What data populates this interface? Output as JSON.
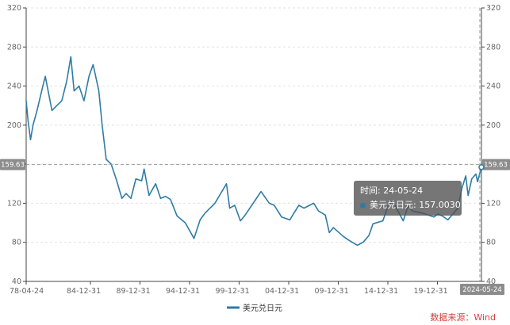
{
  "chart_data": {
    "type": "line",
    "title": "",
    "xlabel": "",
    "ylabel": "",
    "ylim": [
      40,
      320
    ],
    "yticks": [
      40,
      80,
      120,
      160,
      200,
      240,
      280,
      320
    ],
    "xticks": [
      "78-04-24",
      "84-12-31",
      "89-12-31",
      "94-12-31",
      "99-12-31",
      "04-12-31",
      "09-12-31",
      "14-12-31",
      "19-12-31",
      "2024-05-24"
    ],
    "grid": true,
    "legend_position": "bottom-center",
    "series": [
      {
        "name": "美元兑日元",
        "color": "#2e7ca3",
        "x": [
          "1978-04-24",
          "1978-07-01",
          "1978-10-01",
          "1979-01-01",
          "1979-06-01",
          "1980-01-01",
          "1980-04-01",
          "1980-12-01",
          "1981-06-01",
          "1981-12-01",
          "1982-06-01",
          "1982-11-01",
          "1983-03-01",
          "1983-09-01",
          "1984-03-01",
          "1984-09-01",
          "1985-02-01",
          "1985-09-01",
          "1985-12-31",
          "1986-06-01",
          "1986-12-01",
          "1987-06-01",
          "1987-12-31",
          "1988-06-01",
          "1988-12-01",
          "1989-06-01",
          "1989-12-31",
          "1990-04-01",
          "1990-10-01",
          "1991-06-01",
          "1991-12-01",
          "1992-06-01",
          "1992-12-01",
          "1993-08-01",
          "1994-06-01",
          "1995-04-19",
          "1995-12-01",
          "1996-06-01",
          "1997-06-01",
          "1998-08-01",
          "1998-12-01",
          "1999-06-01",
          "1999-12-31",
          "2000-06-01",
          "2001-06-01",
          "2002-02-01",
          "2002-12-01",
          "2003-06-01",
          "2004-03-01",
          "2004-12-31",
          "2005-06-01",
          "2005-12-01",
          "2006-06-01",
          "2007-06-01",
          "2007-12-01",
          "2008-08-01",
          "2008-12-31",
          "2009-06-01",
          "2010-06-01",
          "2011-01-01",
          "2011-10-31",
          "2012-06-01",
          "2012-12-31",
          "2013-06-01",
          "2014-06-01",
          "2014-12-31",
          "2015-06-01",
          "2016-06-24",
          "2016-12-15",
          "2017-06-01",
          "2018-06-01",
          "2019-08-01",
          "2019-12-31",
          "2020-06-01",
          "2021-01-01",
          "2021-12-31",
          "2022-06-01",
          "2022-10-20",
          "2023-01-16",
          "2023-06-01",
          "2023-11-01",
          "2024-01-01",
          "2024-05-24"
        ],
        "values": [
          225,
          205,
          185,
          200,
          215,
          240,
          250,
          215,
          220,
          225,
          245,
          270,
          235,
          240,
          225,
          250,
          262,
          235,
          200,
          165,
          160,
          145,
          125,
          130,
          125,
          145,
          143,
          155,
          128,
          140,
          125,
          127,
          124,
          107,
          100,
          84,
          103,
          110,
          120,
          140,
          115,
          118,
          102,
          107,
          122,
          132,
          120,
          118,
          106,
          103,
          110,
          118,
          115,
          120,
          112,
          108,
          90,
          95,
          86,
          82,
          77,
          80,
          87,
          99,
          102,
          119,
          122,
          102,
          117,
          112,
          110,
          106,
          109,
          107,
          103,
          115,
          135,
          148,
          128,
          145,
          150,
          142,
          157
        ]
      }
    ]
  },
  "legend": {
    "label": "美元兑日元"
  },
  "crosshair": {
    "y_value_label": "159.63",
    "x_value_label": "2024-05-24"
  },
  "tooltip": {
    "time_label": "时间: 24-05-24",
    "series_label": "美元兑日元",
    "value": "157.0030"
  },
  "source": "数据来源：Wind",
  "colors": {
    "line": "#2e7ca3",
    "axis_badge": "#8c8c8c"
  }
}
